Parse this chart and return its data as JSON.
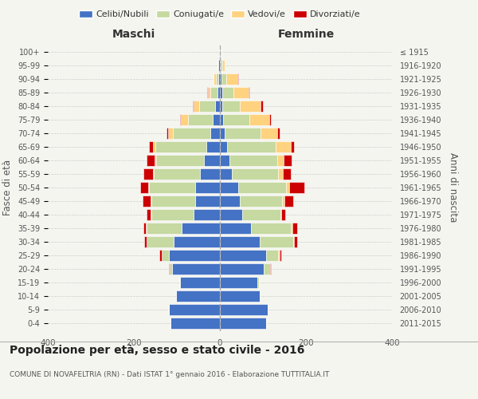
{
  "age_groups": [
    "0-4",
    "5-9",
    "10-14",
    "15-19",
    "20-24",
    "25-29",
    "30-34",
    "35-39",
    "40-44",
    "45-49",
    "50-54",
    "55-59",
    "60-64",
    "65-69",
    "70-74",
    "75-79",
    "80-84",
    "85-89",
    "90-94",
    "95-99",
    "100+"
  ],
  "birth_years": [
    "2011-2015",
    "2006-2010",
    "2001-2005",
    "1996-2000",
    "1991-1995",
    "1986-1990",
    "1981-1985",
    "1976-1980",
    "1971-1975",
    "1966-1970",
    "1961-1965",
    "1956-1960",
    "1951-1955",
    "1946-1950",
    "1941-1945",
    "1936-1940",
    "1931-1935",
    "1926-1930",
    "1921-1925",
    "1916-1920",
    "≤ 1915"
  ],
  "maschi": {
    "celibi": [
      115,
      118,
      102,
      92,
      112,
      118,
      108,
      88,
      62,
      57,
      57,
      47,
      37,
      32,
      22,
      17,
      11,
      6,
      4,
      3,
      2
    ],
    "coniugati": [
      0,
      0,
      0,
      2,
      5,
      18,
      62,
      82,
      98,
      103,
      107,
      107,
      112,
      118,
      88,
      58,
      38,
      16,
      6,
      3,
      0
    ],
    "vedovi": [
      0,
      0,
      0,
      0,
      0,
      0,
      1,
      2,
      2,
      2,
      2,
      2,
      3,
      5,
      10,
      15,
      12,
      6,
      4,
      0,
      0
    ],
    "divorziati": [
      0,
      0,
      0,
      0,
      2,
      5,
      5,
      5,
      8,
      18,
      20,
      22,
      18,
      10,
      5,
      2,
      2,
      2,
      0,
      0,
      0
    ]
  },
  "femmine": {
    "celibi": [
      108,
      112,
      92,
      87,
      102,
      108,
      92,
      72,
      52,
      47,
      42,
      27,
      22,
      17,
      12,
      7,
      5,
      5,
      3,
      2,
      2
    ],
    "coniugati": [
      0,
      0,
      0,
      3,
      15,
      28,
      78,
      93,
      88,
      98,
      112,
      108,
      112,
      112,
      82,
      62,
      42,
      26,
      12,
      3,
      0
    ],
    "vedovi": [
      0,
      0,
      0,
      0,
      0,
      2,
      2,
      3,
      3,
      5,
      8,
      12,
      15,
      35,
      40,
      45,
      48,
      36,
      26,
      6,
      2
    ],
    "divorziati": [
      0,
      0,
      0,
      0,
      2,
      5,
      8,
      12,
      8,
      20,
      35,
      18,
      18,
      8,
      5,
      5,
      5,
      2,
      2,
      0,
      0
    ]
  },
  "colors": {
    "celibi": "#4472c4",
    "coniugati": "#c5d9a0",
    "vedovi": "#ffd27f",
    "divorziati": "#cc0000"
  },
  "title": "Popolazione per età, sesso e stato civile - 2016",
  "subtitle": "COMUNE DI NOVAFELTRIA (RN) - Dati ISTAT 1° gennaio 2016 - Elaborazione TUTTITALIA.IT",
  "ylabel": "Fasce di età",
  "ylabel_right": "Anni di nascita",
  "xlim": 400,
  "background_color": "#f5f5f0",
  "plot_bg_color": "#f5f5f0",
  "grid_color": "#cccccc",
  "legend_labels": [
    "Celibi/Nubili",
    "Coniugati/e",
    "Vedovi/e",
    "Divorziati/e"
  ]
}
